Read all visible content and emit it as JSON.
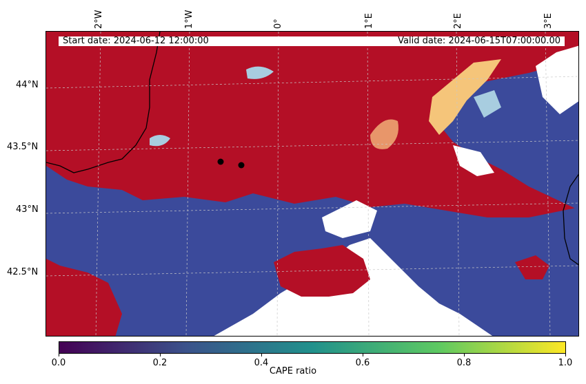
{
  "map": {
    "start_date": "Start date: 2024-06-12  12:00:00",
    "valid_date": "Valid  date: 2024-06-15T07:00:00.00",
    "lon_labels": [
      "2°W",
      "1°W",
      "0°",
      "1°E",
      "2°E",
      "3°E"
    ],
    "lat_labels": [
      "44°N",
      "43.5°N",
      "43°N",
      "42.5°N"
    ],
    "colors": {
      "high": "#b40f26",
      "low": "#3b4a9b",
      "missing": "#ffffff",
      "mid_warm": "#f5c57a",
      "mid_cool": "#a8cde0"
    }
  },
  "colorbar": {
    "label": "CAPE ratio",
    "ticks": [
      "0.0",
      "0.2",
      "0.4",
      "0.6",
      "0.8",
      "1.0"
    ],
    "cmap": "viridis"
  }
}
